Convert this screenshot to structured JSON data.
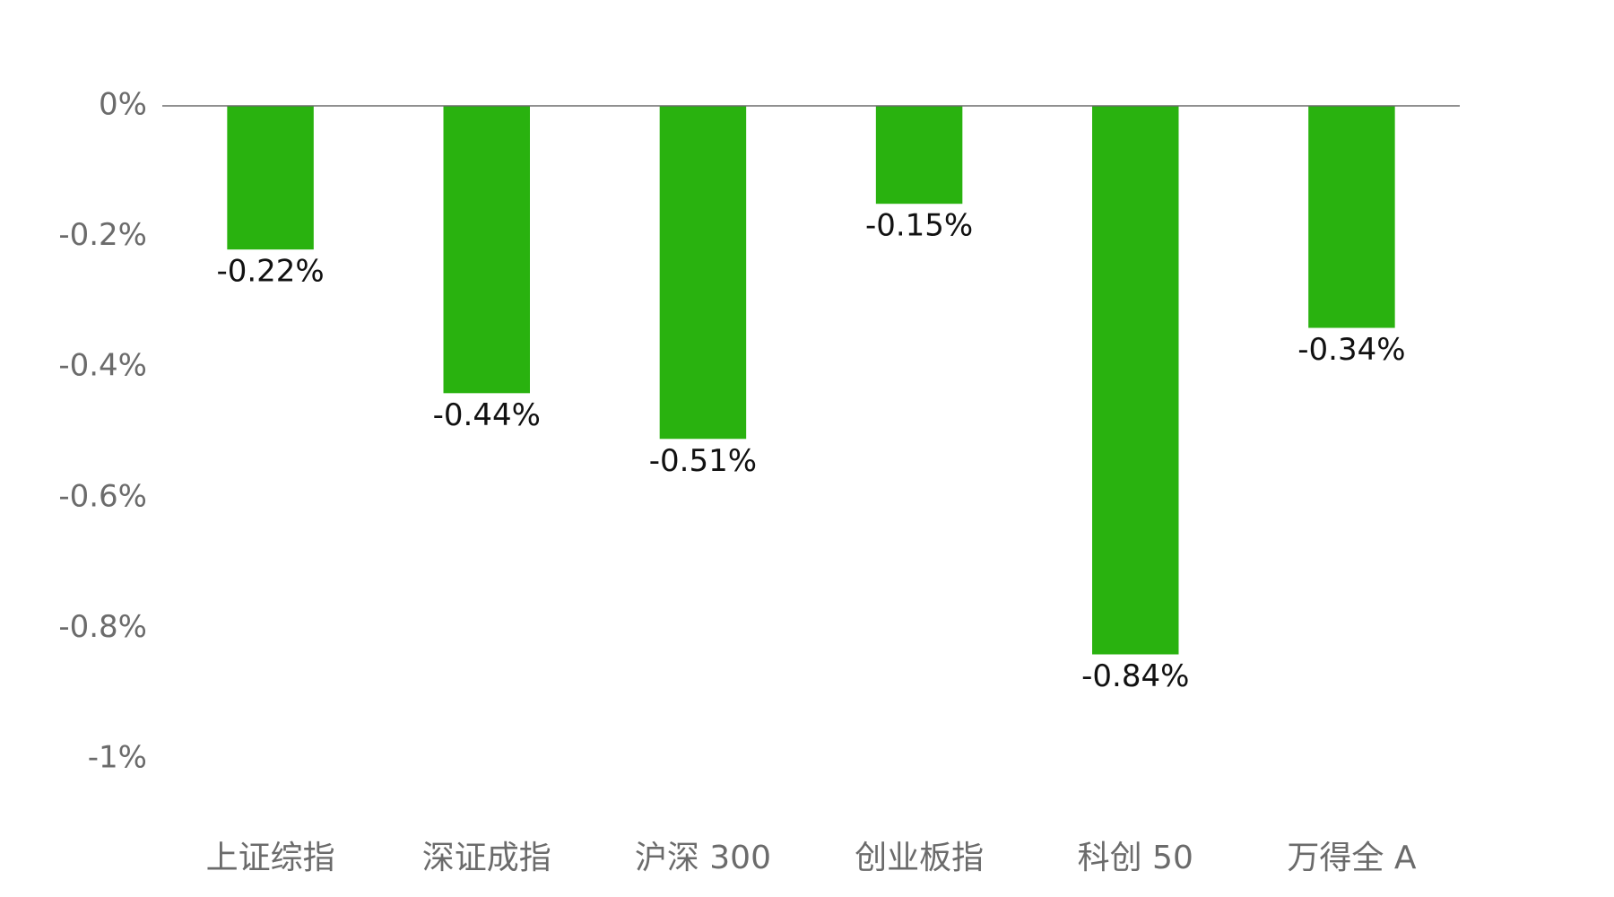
{
  "chart_data": {
    "type": "bar",
    "categories": [
      "上证综指",
      "深证成指",
      "沪深 300",
      "创业板指",
      "科创 50",
      "万得全 A"
    ],
    "values": [
      -0.22,
      -0.44,
      -0.51,
      -0.15,
      -0.84,
      -0.34
    ],
    "value_labels": [
      "-0.22%",
      "-0.44%",
      "-0.51%",
      "-0.15%",
      "-0.84%",
      "-0.34%"
    ],
    "color": "#29b20f",
    "ylim": [
      -1,
      0
    ],
    "yticks": [
      {
        "value": 0,
        "label": "0%"
      },
      {
        "value": -0.2,
        "label": "-0.2%"
      },
      {
        "value": -0.4,
        "label": "-0.4%"
      },
      {
        "value": -0.6,
        "label": "-0.6%"
      },
      {
        "value": -0.8,
        "label": "-0.8%"
      },
      {
        "value": -1,
        "label": "-1%"
      }
    ],
    "grid": false
  }
}
